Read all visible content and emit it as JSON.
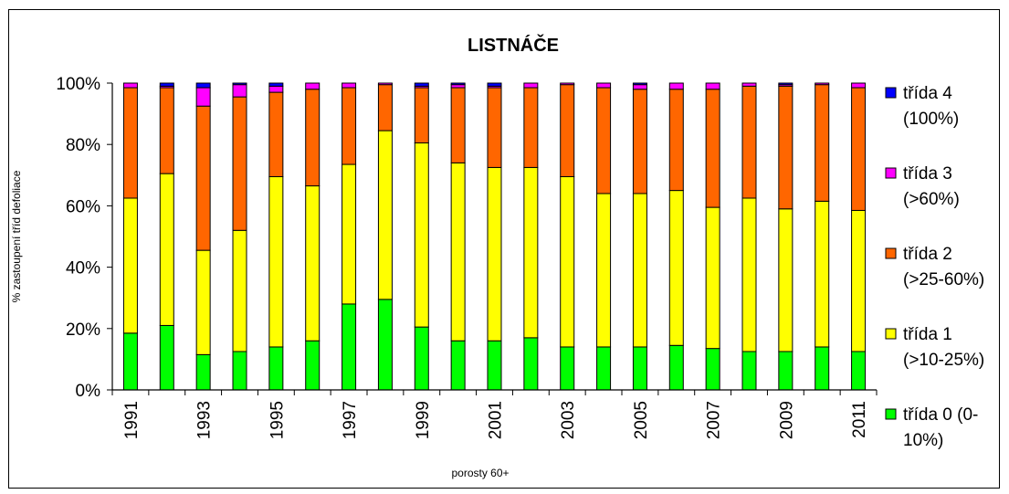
{
  "chart_data": {
    "type": "bar",
    "stacked": "percent",
    "title": "LISTNÁČE",
    "xlabel": "porosty 60+",
    "ylabel": "% zastoupení tříd defoliace",
    "ylim": [
      0,
      100
    ],
    "y_ticks": [
      "0%",
      "20%",
      "40%",
      "60%",
      "80%",
      "100%"
    ],
    "x_tick_labels": [
      "1991",
      "1993",
      "1995",
      "1997",
      "1999",
      "2001",
      "2003",
      "2005",
      "2007",
      "2009",
      "2011"
    ],
    "categories": [
      "1991",
      "1992",
      "1993",
      "1994",
      "1995",
      "1996",
      "1997",
      "1998",
      "1999",
      "2000",
      "2001",
      "2002",
      "2003",
      "2004",
      "2005",
      "2006",
      "2007",
      "2008",
      "2009",
      "2010",
      "2011"
    ],
    "legend_position": "right",
    "series": [
      {
        "name": "třída 0 (0-10%)",
        "legend_lines": [
          "třída 0 (0-",
          "10%)"
        ],
        "color": "#00ff00",
        "values": [
          18.5,
          21,
          11.5,
          12.5,
          14,
          16,
          28,
          29.5,
          20.5,
          16,
          16,
          17,
          14,
          14,
          14,
          14.5,
          13.5,
          12.5,
          12.5,
          14,
          12.5
        ]
      },
      {
        "name": "třída 1 (>10-25%)",
        "legend_lines": [
          "třída 1",
          "(>10-25%)"
        ],
        "color": "#ffff00",
        "values": [
          44,
          49.5,
          34,
          39.5,
          55.5,
          50.5,
          45.5,
          55,
          60,
          58,
          56.5,
          55.5,
          55.5,
          50,
          50,
          50.5,
          46,
          50,
          46.5,
          47.5,
          46
        ]
      },
      {
        "name": "třída 2 (>25-60%)",
        "legend_lines": [
          "třída 2",
          "(>25-60%)"
        ],
        "color": "#ff6600",
        "values": [
          36,
          28,
          47,
          43.5,
          27.5,
          31.5,
          25,
          15,
          18,
          24.5,
          26,
          26,
          30,
          34.5,
          34,
          33,
          38.5,
          36.5,
          40,
          38,
          40
        ]
      },
      {
        "name": "třída 3 (>60%)",
        "legend_lines": [
          "třída 3",
          "(>60%)"
        ],
        "color": "#ff00ff",
        "values": [
          1.5,
          0.5,
          6,
          4,
          2,
          2,
          1.5,
          0.5,
          0.5,
          1,
          0.5,
          1.5,
          0.5,
          1.5,
          1.5,
          2,
          2,
          1,
          0.5,
          0.5,
          1.5
        ]
      },
      {
        "name": "třída 4 (100%)",
        "legend_lines": [
          "třída 4",
          "(100%)"
        ],
        "color": "#0000ff",
        "values": [
          0,
          1,
          1.5,
          0.5,
          1,
          0,
          0,
          0,
          1,
          0.5,
          1,
          0,
          0,
          0,
          0.5,
          0,
          0,
          0,
          0.5,
          0,
          0
        ]
      }
    ]
  }
}
